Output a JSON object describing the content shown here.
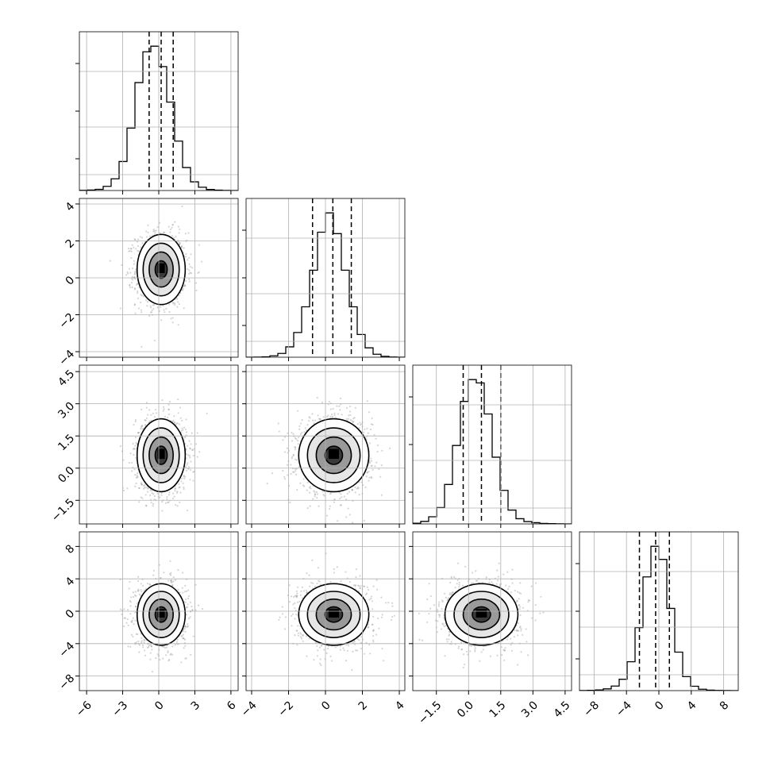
{
  "chart_data": {
    "type": "corner",
    "parameters": [
      "",
      "",
      "",
      ""
    ],
    "grid": true,
    "axes": [
      {
        "range": [
          -6.6,
          6.6
        ],
        "ticks": [
          -6,
          -3,
          0,
          3,
          6
        ],
        "tick_labels": [
          "−6",
          "−3",
          "0",
          "3",
          "6"
        ],
        "mean": 0.2,
        "sd": 1.0,
        "quantiles": [
          -0.8,
          0.2,
          1.2
        ]
      },
      {
        "range": [
          -4.3,
          4.3
        ],
        "ticks": [
          -4,
          -2,
          0,
          2,
          4
        ],
        "tick_labels": [
          "−4",
          "−2",
          "0",
          "2",
          "4"
        ],
        "mean": 0.45,
        "sd": 0.95,
        "quantiles": [
          -0.7,
          0.4,
          1.4
        ]
      },
      {
        "range": [
          -2.6,
          4.8
        ],
        "ticks": [
          -1.5,
          0.0,
          1.5,
          3.0,
          4.5
        ],
        "tick_labels": [
          "−1.5",
          "0.0",
          "1.5",
          "3.0",
          "4.5"
        ],
        "mean": 0.6,
        "sd": 0.85,
        "quantiles": [
          -0.25,
          0.6,
          1.5
        ]
      },
      {
        "range": [
          -9.8,
          9.8
        ],
        "ticks": [
          -8,
          -4,
          0,
          4,
          8
        ],
        "tick_labels": [
          "−8",
          "−4",
          "0",
          "4",
          "8"
        ],
        "mean": -0.4,
        "sd": 1.9,
        "quantiles": [
          -2.4,
          -0.4,
          1.3
        ]
      }
    ],
    "histograms": [
      {
        "bins": 20,
        "counts": [
          2,
          5,
          14,
          48,
          135,
          335,
          720,
          1245,
          1600,
          1665,
          1430,
          1020,
          570,
          265,
          100,
          38,
          12,
          4,
          1,
          0
        ]
      },
      {
        "bins": 20,
        "counts": [
          0,
          1,
          4,
          14,
          38,
          105,
          250,
          510,
          880,
          1265,
          1460,
          1250,
          880,
          510,
          230,
          95,
          30,
          9,
          2,
          0
        ]
      },
      {
        "bins": 20,
        "counts": [
          8,
          30,
          85,
          195,
          470,
          935,
          1460,
          1720,
          1680,
          1310,
          795,
          400,
          165,
          62,
          28,
          15,
          6,
          3,
          1,
          0
        ]
      },
      {
        "bins": 20,
        "counts": [
          1,
          3,
          8,
          20,
          52,
          130,
          330,
          720,
          1300,
          1650,
          1500,
          940,
          440,
          160,
          50,
          16,
          5,
          2,
          1,
          0
        ]
      }
    ],
    "scatter_density": {
      "points_per_panel": 1300
    },
    "correlation": 0.0
  }
}
